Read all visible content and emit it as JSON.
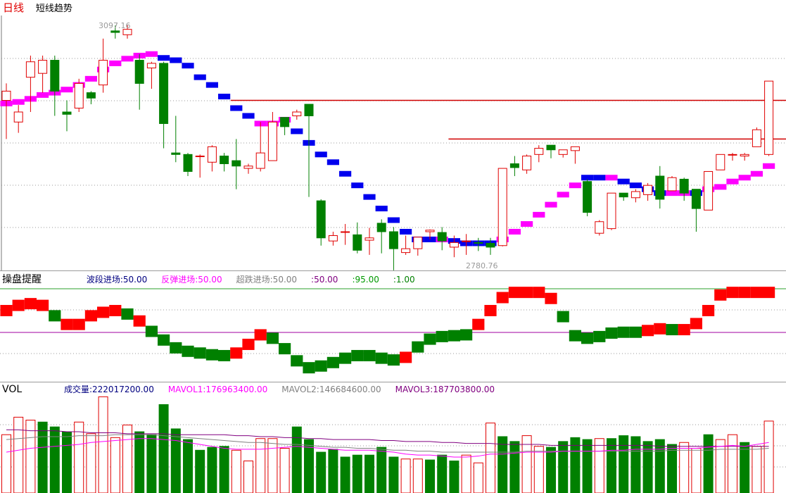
{
  "header": {
    "period": "日线",
    "indicator_name": "短线趋势"
  },
  "price_labels": {
    "high": "3097.16",
    "low": "2780.76"
  },
  "oscillator": {
    "title": "操盘提醒",
    "legend": [
      {
        "label": "波段进场:50.00",
        "color": "#000080"
      },
      {
        "label": "反弹进场:50.00",
        "color": "#ff00ff"
      },
      {
        "label": "超跌进场:50.00",
        "color": "#808080"
      },
      {
        "label": ":50.00",
        "color": "#800080"
      },
      {
        "label": ":95.00",
        "color": "#009900"
      },
      {
        "label": ":1.00",
        "color": "#008000"
      }
    ]
  },
  "volume": {
    "title": "VOL",
    "legend": [
      {
        "label": "成交量:222017200.00",
        "color": "#000080"
      },
      {
        "label": "MAVOL1:176963400.00",
        "color": "#ff00ff"
      },
      {
        "label": "MAVOL2:146684600.00",
        "color": "#808080"
      },
      {
        "label": "MAVOL3:187703800.00",
        "color": "#800080"
      }
    ]
  },
  "colors": {
    "up": "#e00000",
    "down": "#008000",
    "trend_up": "#ff00ff",
    "trend_down": "#0000ee",
    "grid": "#999999"
  },
  "chart_data": {
    "type": "candlestick",
    "price_range": [
      2780.76,
      3097.16
    ],
    "candles": [
      [
        3000,
        3012,
        2950,
        3022
      ],
      [
        2972,
        2985,
        2958,
        2994
      ],
      [
        3030,
        3050,
        2985,
        3058
      ],
      [
        3035,
        3052,
        3010,
        3058
      ],
      [
        3052,
        3012,
        2980,
        3058
      ],
      [
        2985,
        2982,
        2960,
        3000
      ],
      [
        2990,
        3022,
        2985,
        3028
      ],
      [
        3010,
        3003,
        2995,
        3012
      ],
      [
        3020,
        3052,
        3010,
        3080
      ],
      [
        3090,
        3088,
        3080,
        3097
      ],
      [
        3085,
        3092,
        3080,
        3098
      ],
      [
        3052,
        3022,
        2988,
        3060
      ],
      [
        3042,
        3048,
        3015,
        3050
      ],
      [
        3048,
        2970,
        2938,
        3050
      ],
      [
        2932,
        2930,
        2920,
        2980
      ],
      [
        2930,
        2908,
        2902,
        2932
      ],
      [
        2928,
        2928,
        2900,
        2930
      ],
      [
        2920,
        2940,
        2908,
        2942
      ],
      [
        2928,
        2918,
        2908,
        2932
      ],
      [
        2922,
        2915,
        2885,
        2950
      ],
      [
        2912,
        2915,
        2905,
        2918
      ],
      [
        2912,
        2932,
        2908,
        2972
      ],
      [
        2922,
        2972,
        2925,
        2985
      ],
      [
        2978,
        2966,
        2955,
        2978
      ],
      [
        2980,
        2985,
        2975,
        2988
      ],
      [
        2995,
        2980,
        2875,
        2995
      ],
      [
        2870,
        2822,
        2812,
        2872
      ],
      [
        2818,
        2825,
        2812,
        2830
      ],
      [
        2830,
        2830,
        2813,
        2840
      ],
      [
        2826,
        2806,
        2802,
        2842
      ],
      [
        2819,
        2822,
        2800,
        2835
      ],
      [
        2841,
        2830,
        2802,
        2846
      ],
      [
        2830,
        2808,
        2780,
        2836
      ],
      [
        2803,
        2808,
        2800,
        2825
      ],
      [
        2808,
        2823,
        2799,
        2822
      ],
      [
        2830,
        2832,
        2820,
        2833
      ],
      [
        2829,
        2818,
        2806,
        2836
      ],
      [
        2810,
        2816,
        2797,
        2825
      ],
      [
        2818,
        2818,
        2800,
        2827
      ],
      [
        2816,
        2815,
        2805,
        2822
      ],
      [
        2815,
        2810,
        2800,
        2822
      ],
      [
        2812,
        2912,
        2811,
        2912
      ],
      [
        2918,
        2913,
        2902,
        2928
      ],
      [
        2910,
        2928,
        2905,
        2930
      ],
      [
        2930,
        2938,
        2920,
        2942
      ],
      [
        2942,
        2936,
        2925,
        2942
      ],
      [
        2930,
        2936,
        2926,
        2936
      ],
      [
        2935,
        2940,
        2918,
        2940
      ],
      [
        2895,
        2855,
        2850,
        2898
      ],
      [
        2828,
        2843,
        2825,
        2845
      ],
      [
        2834,
        2880,
        2832,
        2880
      ],
      [
        2880,
        2875,
        2870,
        2880
      ],
      [
        2874,
        2882,
        2868,
        2885
      ],
      [
        2878,
        2890,
        2870,
        2893
      ],
      [
        2902,
        2872,
        2860,
        2915
      ],
      [
        2883,
        2900,
        2883,
        2902
      ],
      [
        2898,
        2880,
        2870,
        2900
      ],
      [
        2885,
        2860,
        2830,
        2885
      ],
      [
        2858,
        2908,
        2858,
        2908
      ],
      [
        2910,
        2930,
        2910,
        2930
      ],
      [
        2930,
        2930,
        2922,
        2932
      ],
      [
        2928,
        2930,
        2922,
        2932
      ],
      [
        2940,
        2962,
        2940,
        2965
      ],
      [
        2930,
        3025,
        2928,
        3025
      ]
    ],
    "trend": [
      [
        2996,
        "up"
      ],
      [
        2998,
        "up"
      ],
      [
        3002,
        "up"
      ],
      [
        3007,
        "up"
      ],
      [
        3010,
        "up"
      ],
      [
        3014,
        "up"
      ],
      [
        3020,
        "up"
      ],
      [
        3028,
        "up"
      ],
      [
        3040,
        "up"
      ],
      [
        3048,
        "up"
      ],
      [
        3054,
        "up"
      ],
      [
        3058,
        "up"
      ],
      [
        3060,
        "up"
      ],
      [
        3055,
        "down"
      ],
      [
        3052,
        "down"
      ],
      [
        3045,
        "down"
      ],
      [
        3030,
        "down"
      ],
      [
        3020,
        "down"
      ],
      [
        3005,
        "down"
      ],
      [
        2990,
        "down"
      ],
      [
        2980,
        "down"
      ],
      [
        2970,
        "up"
      ],
      [
        2970,
        "up"
      ],
      [
        2975,
        "up"
      ],
      [
        2960,
        "down"
      ],
      [
        2945,
        "down"
      ],
      [
        2930,
        "down"
      ],
      [
        2920,
        "down"
      ],
      [
        2905,
        "down"
      ],
      [
        2890,
        "down"
      ],
      [
        2875,
        "down"
      ],
      [
        2860,
        "down"
      ],
      [
        2845,
        "down"
      ],
      [
        2830,
        "down"
      ],
      [
        2820,
        "down"
      ],
      [
        2820,
        "down"
      ],
      [
        2820,
        "up"
      ],
      [
        2818,
        "down"
      ],
      [
        2815,
        "down"
      ],
      [
        2815,
        "down"
      ],
      [
        2815,
        "down"
      ],
      [
        2820,
        "up"
      ],
      [
        2830,
        "up"
      ],
      [
        2840,
        "up"
      ],
      [
        2852,
        "up"
      ],
      [
        2865,
        "up"
      ],
      [
        2878,
        "up"
      ],
      [
        2890,
        "up"
      ],
      [
        2900,
        "down"
      ],
      [
        2900,
        "down"
      ],
      [
        2900,
        "up"
      ],
      [
        2895,
        "down"
      ],
      [
        2890,
        "down"
      ],
      [
        2885,
        "down"
      ],
      [
        2880,
        "down"
      ],
      [
        2880,
        "up"
      ],
      [
        2880,
        "up"
      ],
      [
        2880,
        "down"
      ],
      [
        2885,
        "up"
      ],
      [
        2888,
        "up"
      ],
      [
        2895,
        "up"
      ],
      [
        2900,
        "up"
      ],
      [
        2905,
        "up"
      ],
      [
        2915,
        "up"
      ]
    ],
    "resistance_lines": [
      {
        "start": 19,
        "price": 3000
      },
      {
        "start": 37,
        "price": 2950
      }
    ],
    "oscillator_values": [
      [
        74,
        "up"
      ],
      [
        80,
        "up"
      ],
      [
        82,
        "up"
      ],
      [
        80,
        "up"
      ],
      [
        68,
        "down"
      ],
      [
        58,
        "up"
      ],
      [
        58,
        "up"
      ],
      [
        68,
        "up"
      ],
      [
        72,
        "up"
      ],
      [
        74,
        "up"
      ],
      [
        70,
        "down"
      ],
      [
        62,
        "up"
      ],
      [
        50,
        "down"
      ],
      [
        40,
        "down"
      ],
      [
        31,
        "down"
      ],
      [
        27,
        "down"
      ],
      [
        25,
        "down"
      ],
      [
        23,
        "down"
      ],
      [
        22,
        "down"
      ],
      [
        25,
        "up"
      ],
      [
        35,
        "up"
      ],
      [
        46,
        "up"
      ],
      [
        42,
        "down"
      ],
      [
        30,
        "down"
      ],
      [
        16,
        "down"
      ],
      [
        8,
        "down"
      ],
      [
        10,
        "down"
      ],
      [
        14,
        "down"
      ],
      [
        19,
        "down"
      ],
      [
        22,
        "down"
      ],
      [
        22,
        "down"
      ],
      [
        19,
        "down"
      ],
      [
        17,
        "down"
      ],
      [
        20,
        "up"
      ],
      [
        32,
        "down"
      ],
      [
        41,
        "down"
      ],
      [
        44,
        "down"
      ],
      [
        45,
        "down"
      ],
      [
        46,
        "down"
      ],
      [
        58,
        "up"
      ],
      [
        74,
        "up"
      ],
      [
        89,
        "up"
      ],
      [
        95,
        "up"
      ],
      [
        95,
        "up"
      ],
      [
        95,
        "up"
      ],
      [
        88,
        "up"
      ],
      [
        67,
        "down"
      ],
      [
        45,
        "down"
      ],
      [
        42,
        "down"
      ],
      [
        44,
        "down"
      ],
      [
        48,
        "down"
      ],
      [
        49,
        "down"
      ],
      [
        49,
        "down"
      ],
      [
        51,
        "up"
      ],
      [
        53,
        "up"
      ],
      [
        52,
        "down"
      ],
      [
        52,
        "up"
      ],
      [
        59,
        "up"
      ],
      [
        74,
        "up"
      ],
      [
        92,
        "up"
      ],
      [
        95,
        "up"
      ],
      [
        95,
        "up"
      ],
      [
        95,
        "up"
      ],
      [
        95,
        "up"
      ]
    ],
    "volume_values": [
      [
        60,
        "up"
      ],
      [
        78,
        "up"
      ],
      [
        75,
        "up"
      ],
      [
        73,
        "down"
      ],
      [
        68,
        "down"
      ],
      [
        63,
        "down"
      ],
      [
        73,
        "up"
      ],
      [
        61,
        "up"
      ],
      [
        99,
        "up"
      ],
      [
        57,
        "up"
      ],
      [
        70,
        "up"
      ],
      [
        63,
        "down"
      ],
      [
        60,
        "down"
      ],
      [
        91,
        "down"
      ],
      [
        66,
        "down"
      ],
      [
        55,
        "down"
      ],
      [
        44,
        "down"
      ],
      [
        47,
        "down"
      ],
      [
        48,
        "down"
      ],
      [
        44,
        "up"
      ],
      [
        33,
        "up"
      ],
      [
        56,
        "up"
      ],
      [
        56,
        "up"
      ],
      [
        46,
        "up"
      ],
      [
        68,
        "down"
      ],
      [
        55,
        "down"
      ],
      [
        42,
        "down"
      ],
      [
        45,
        "down"
      ],
      [
        37,
        "down"
      ],
      [
        39,
        "down"
      ],
      [
        39,
        "down"
      ],
      [
        47,
        "down"
      ],
      [
        37,
        "down"
      ],
      [
        35,
        "up"
      ],
      [
        35,
        "up"
      ],
      [
        34,
        "down"
      ],
      [
        39,
        "down"
      ],
      [
        33,
        "down"
      ],
      [
        39,
        "up"
      ],
      [
        31,
        "up"
      ],
      [
        72,
        "up"
      ],
      [
        58,
        "down"
      ],
      [
        53,
        "down"
      ],
      [
        59,
        "up"
      ],
      [
        48,
        "up"
      ],
      [
        47,
        "down"
      ],
      [
        53,
        "down"
      ],
      [
        57,
        "down"
      ],
      [
        55,
        "down"
      ],
      [
        56,
        "up"
      ],
      [
        56,
        "down"
      ],
      [
        59,
        "down"
      ],
      [
        58,
        "down"
      ],
      [
        53,
        "down"
      ],
      [
        55,
        "down"
      ],
      [
        50,
        "down"
      ],
      [
        52,
        "up"
      ],
      [
        46,
        "up"
      ],
      [
        60,
        "down"
      ],
      [
        55,
        "up"
      ],
      [
        60,
        "up"
      ],
      [
        52,
        "down"
      ],
      [
        48,
        "up"
      ],
      [
        74,
        "up"
      ]
    ],
    "mavol1": [
      42,
      44,
      46,
      47,
      48,
      49,
      50,
      52,
      53,
      54,
      55,
      56,
      56,
      55,
      54,
      52,
      50,
      48,
      46,
      45,
      45,
      45,
      46,
      47,
      48,
      47,
      46,
      45,
      44,
      44,
      44,
      43,
      42,
      40,
      39,
      39,
      38,
      37,
      37,
      38,
      40,
      40,
      41,
      42,
      42,
      42,
      43,
      43,
      43,
      43,
      44,
      44,
      45,
      45,
      45,
      46,
      46,
      46,
      47,
      48,
      49,
      48,
      50,
      52
    ],
    "mavol2": [
      55,
      56,
      57,
      58,
      58,
      58,
      59,
      59,
      59,
      60,
      60,
      60,
      60,
      59,
      58,
      57,
      56,
      55,
      54,
      53,
      52,
      52,
      51,
      50,
      50,
      49,
      48,
      47,
      47,
      46,
      46,
      45,
      44,
      44,
      43,
      43,
      42,
      42,
      42,
      42,
      42,
      42,
      42,
      43,
      43,
      43,
      43,
      43,
      43,
      43,
      43,
      43,
      43,
      43,
      43,
      44,
      44,
      44,
      44,
      45,
      45,
      45,
      45,
      46
    ],
    "mavol3": [
      65,
      65,
      64,
      64,
      64,
      63,
      63,
      62,
      62,
      62,
      61,
      61,
      61,
      61,
      60,
      60,
      60,
      60,
      60,
      59,
      59,
      58,
      58,
      57,
      57,
      56,
      56,
      55,
      55,
      55,
      55,
      54,
      54,
      53,
      53,
      53,
      52,
      52,
      51,
      51,
      51,
      50,
      50,
      50,
      50,
      49,
      49,
      49,
      49,
      49,
      49,
      49,
      49,
      49,
      48,
      48,
      48,
      48,
      48,
      48,
      48,
      48,
      48,
      48
    ]
  }
}
